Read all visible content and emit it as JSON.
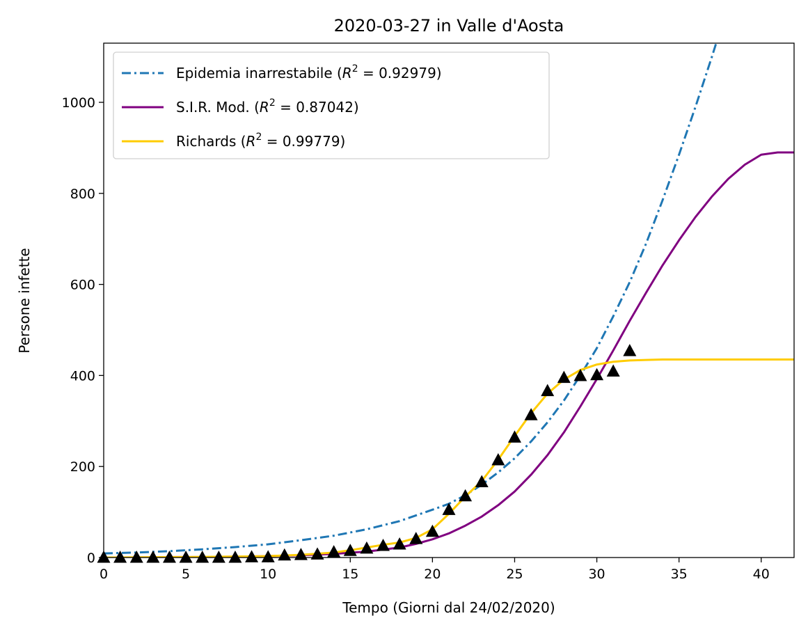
{
  "chart_data": {
    "type": "line",
    "title": "2020-03-27 in Valle d'Aosta",
    "xlabel": "Tempo (Giorni dal 24/02/2020)",
    "ylabel": "Persone infette",
    "xlim": [
      0,
      42
    ],
    "ylim": [
      0,
      1130
    ],
    "xticks": [
      0,
      5,
      10,
      15,
      20,
      25,
      30,
      35,
      40
    ],
    "yticks": [
      0,
      200,
      400,
      600,
      800,
      1000
    ],
    "legend_position": "top-left",
    "grid": false,
    "series": [
      {
        "name": "Epidemia inarrestabile",
        "r2_label": "0.92979",
        "color": "#1f77b4",
        "style": "dashdot",
        "model": "exponential",
        "x": [
          0,
          2,
          4,
          6,
          8,
          10,
          12,
          14,
          16,
          18,
          20,
          21,
          22,
          23,
          24,
          25,
          26,
          27,
          28,
          29,
          30,
          31,
          32,
          33,
          34,
          35,
          36,
          37,
          38
        ],
        "y": [
          9,
          11,
          14,
          18,
          23,
          29,
          38,
          48,
          62,
          80,
          105,
          118,
          137,
          160,
          187,
          218,
          255,
          297,
          345,
          400,
          460,
          530,
          605,
          690,
          785,
          885,
          990,
          1100,
          1215
        ]
      },
      {
        "name": "S.I.R. Mod.",
        "r2_label": "0.87042",
        "color": "#800080",
        "style": "solid",
        "model": "sir",
        "x": [
          0,
          2,
          4,
          6,
          8,
          10,
          12,
          14,
          16,
          18,
          19,
          20,
          21,
          22,
          23,
          24,
          25,
          26,
          27,
          28,
          29,
          30,
          31,
          32,
          33,
          34,
          35,
          36,
          37,
          38,
          39,
          40,
          41,
          42
        ],
        "y": [
          0,
          0,
          1,
          1,
          2,
          3,
          5,
          8,
          13,
          22,
          30,
          40,
          53,
          70,
          90,
          115,
          145,
          182,
          225,
          275,
          332,
          392,
          455,
          520,
          582,
          642,
          697,
          748,
          793,
          832,
          863,
          885,
          890,
          890
        ]
      },
      {
        "name": "Richards",
        "r2_label": "0.99779",
        "color": "#ffcc00",
        "style": "solid",
        "model": "richards",
        "x": [
          0,
          5,
          10,
          12,
          14,
          15,
          16,
          17,
          18,
          19,
          20,
          21,
          22,
          23,
          24,
          25,
          26,
          27,
          28,
          29,
          30,
          31,
          32,
          33,
          34,
          36,
          38,
          40,
          42
        ],
        "y": [
          0,
          1,
          3,
          6,
          11,
          16,
          22,
          28,
          33,
          43,
          62,
          96,
          134,
          168,
          215,
          267,
          317,
          360,
          391,
          412,
          424,
          430,
          433,
          434,
          435,
          435,
          435,
          435,
          435
        ]
      },
      {
        "name": "",
        "color": "#000000",
        "style": "markers",
        "marker": "triangle-up",
        "x": [
          0,
          1,
          2,
          3,
          4,
          5,
          6,
          7,
          8,
          9,
          10,
          11,
          12,
          13,
          14,
          15,
          16,
          17,
          18,
          19,
          20,
          21,
          22,
          23,
          24,
          25,
          26,
          27,
          28,
          29,
          30,
          31,
          32
        ],
        "y": [
          0,
          0,
          0,
          0,
          0,
          0,
          0,
          0,
          0,
          1,
          1,
          5,
          6,
          7,
          12,
          15,
          20,
          26,
          29,
          41,
          57,
          105,
          135,
          166,
          214,
          264,
          313,
          366,
          395,
          399,
          401,
          409,
          454
        ]
      }
    ]
  }
}
